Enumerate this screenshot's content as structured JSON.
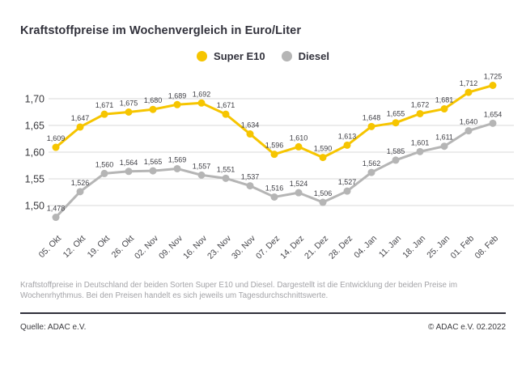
{
  "page": {
    "title": "Kraftstoffpreise im Wochenvergleich in Euro/Liter"
  },
  "legend": {
    "items": [
      {
        "label": "Super E10",
        "color": "#F6C500"
      },
      {
        "label": "Diesel",
        "color": "#B5B5B5"
      }
    ]
  },
  "chart_data": {
    "type": "line",
    "title": "Kraftstoffpreise im Wochenvergleich in Euro/Liter",
    "xlabel": "",
    "ylabel": "Euro/Liter",
    "grid": true,
    "legend_position": "top",
    "value_labels": true,
    "ylim": [
      1.455,
      1.745
    ],
    "categories": [
      "05. Okt",
      "12. Okt",
      "19. Okt",
      "26. Okt",
      "02. Nov",
      "09. Nov",
      "16. Nov",
      "23. Nov",
      "30. Nov",
      "07. Dez",
      "14. Dez",
      "21. Dez",
      "28. Dez",
      "04. Jan",
      "11. Jan",
      "18. Jan",
      "25. Jan",
      "01. Feb",
      "08. Feb"
    ],
    "y_ticks": {
      "values": [
        1.7,
        1.65,
        1.6,
        1.55,
        1.5
      ],
      "labels": [
        "1,70",
        "1,65",
        "1,60",
        "1,55",
        "1,50"
      ]
    },
    "series": [
      {
        "name": "Super E10",
        "color": "#F6C500",
        "values": [
          1.609,
          1.647,
          1.671,
          1.675,
          1.68,
          1.689,
          1.692,
          1.671,
          1.634,
          1.596,
          1.61,
          1.59,
          1.613,
          1.648,
          1.655,
          1.672,
          1.681,
          1.712,
          1.725
        ],
        "labels": [
          "1,609",
          "1,647",
          "1,671",
          "1,675",
          "1,680",
          "1,689",
          "1,692",
          "1,671",
          "1,634",
          "1,596",
          "1,610",
          "1,590",
          "1,613",
          "1,648",
          "1,655",
          "1,672",
          "1,681",
          "1,712",
          "1,725"
        ]
      },
      {
        "name": "Diesel",
        "color": "#B5B5B5",
        "values": [
          1.478,
          1.526,
          1.56,
          1.564,
          1.565,
          1.569,
          1.557,
          1.551,
          1.537,
          1.516,
          1.524,
          1.506,
          1.527,
          1.562,
          1.585,
          1.601,
          1.611,
          1.64,
          1.654
        ],
        "labels": [
          "1,478",
          "1,526",
          "1,560",
          "1,564",
          "1,565",
          "1,569",
          "1,557",
          "1,551",
          "1,537",
          "1,516",
          "1,524",
          "1,506",
          "1,527",
          "1,562",
          "1,585",
          "1,601",
          "1,611",
          "1,640",
          "1,654"
        ]
      }
    ],
    "colors": {
      "grid": "#D9D9D9",
      "tick_text": "#3A3A3E",
      "value_label_text": "#3F3F45",
      "x_label_text": "#47474C"
    }
  },
  "footnote": "Kraftstoffpreise in Deutschland der beiden Sorten Super E10 und Diesel. Dargestellt ist die Entwicklung der beiden Preise im Wochenrhythmus. Bei den Preisen handelt es sich jeweils um Tagesdurchschnittswerte.",
  "source": {
    "left": "Quelle: ADAC e.V.",
    "right": "© ADAC e.V. 02.2022"
  }
}
